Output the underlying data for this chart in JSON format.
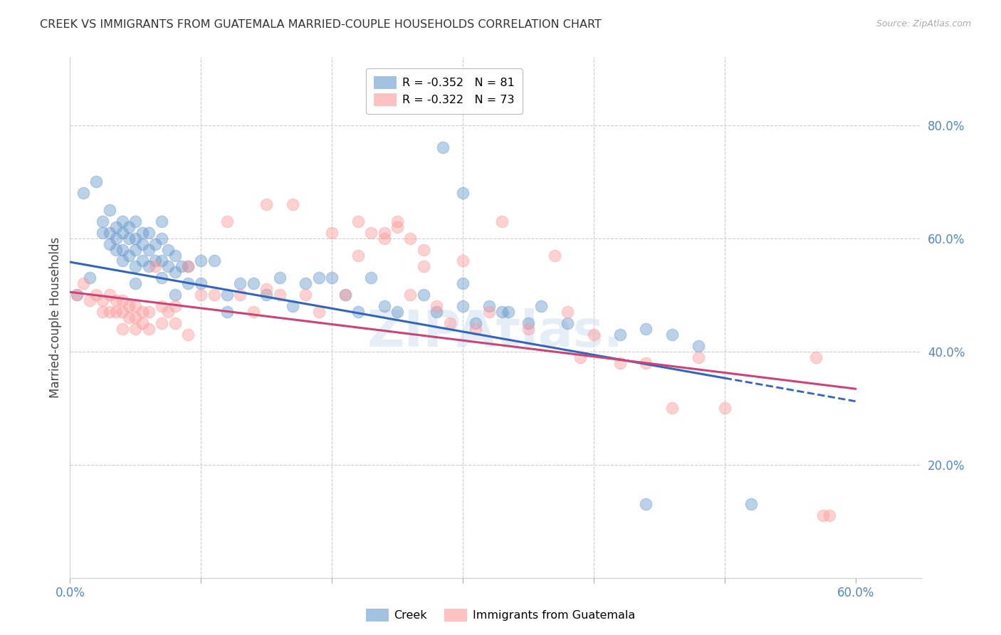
{
  "title": "CREEK VS IMMIGRANTS FROM GUATEMALA MARRIED-COUPLE HOUSEHOLDS CORRELATION CHART",
  "source": "Source: ZipAtlas.com",
  "ylabel": "Married-couple Households",
  "xlim": [
    0.0,
    0.65
  ],
  "ylim": [
    0.0,
    0.92
  ],
  "xticks": [
    0.0,
    0.6
  ],
  "xtick_labels": [
    "0.0%",
    "60.0%"
  ],
  "xtick_minor": [
    0.1,
    0.2,
    0.3,
    0.4,
    0.5
  ],
  "yticks_right": [
    0.2,
    0.4,
    0.6,
    0.8
  ],
  "ytick_labels_right": [
    "20.0%",
    "40.0%",
    "60.0%",
    "80.0%"
  ],
  "grid_color": "#cccccc",
  "background_color": "#ffffff",
  "creek_color": "#6699cc",
  "guatemala_color": "#ff9999",
  "creek_R": -0.352,
  "creek_N": 81,
  "guatemala_R": -0.322,
  "guatemala_N": 73,
  "creek_label": "Creek",
  "guatemala_label": "Immigrants from Guatemala",
  "axis_label_color": "#5588bb",
  "watermark_color": "#ccddef",
  "creek_line_color": "#3366bb",
  "guatemala_line_color": "#cc4477",
  "creek_x": [
    0.005,
    0.01,
    0.015,
    0.02,
    0.025,
    0.025,
    0.03,
    0.03,
    0.03,
    0.035,
    0.035,
    0.035,
    0.04,
    0.04,
    0.04,
    0.04,
    0.045,
    0.045,
    0.045,
    0.05,
    0.05,
    0.05,
    0.05,
    0.05,
    0.055,
    0.055,
    0.055,
    0.06,
    0.06,
    0.06,
    0.065,
    0.065,
    0.07,
    0.07,
    0.07,
    0.07,
    0.075,
    0.075,
    0.08,
    0.08,
    0.08,
    0.085,
    0.09,
    0.09,
    0.1,
    0.1,
    0.11,
    0.12,
    0.12,
    0.13,
    0.14,
    0.15,
    0.16,
    0.17,
    0.18,
    0.19,
    0.2,
    0.21,
    0.22,
    0.23,
    0.24,
    0.25,
    0.27,
    0.28,
    0.3,
    0.3,
    0.31,
    0.33,
    0.35,
    0.36,
    0.38,
    0.42,
    0.44,
    0.46,
    0.48,
    0.285,
    0.3,
    0.32,
    0.335,
    0.44,
    0.52
  ],
  "creek_y": [
    0.5,
    0.68,
    0.53,
    0.7,
    0.63,
    0.61,
    0.65,
    0.61,
    0.59,
    0.62,
    0.6,
    0.58,
    0.63,
    0.61,
    0.58,
    0.56,
    0.62,
    0.6,
    0.57,
    0.63,
    0.6,
    0.58,
    0.55,
    0.52,
    0.61,
    0.59,
    0.56,
    0.61,
    0.58,
    0.55,
    0.59,
    0.56,
    0.63,
    0.6,
    0.56,
    0.53,
    0.58,
    0.55,
    0.57,
    0.54,
    0.5,
    0.55,
    0.55,
    0.52,
    0.56,
    0.52,
    0.56,
    0.5,
    0.47,
    0.52,
    0.52,
    0.5,
    0.53,
    0.48,
    0.52,
    0.53,
    0.53,
    0.5,
    0.47,
    0.53,
    0.48,
    0.47,
    0.5,
    0.47,
    0.52,
    0.48,
    0.45,
    0.47,
    0.45,
    0.48,
    0.45,
    0.43,
    0.44,
    0.43,
    0.41,
    0.76,
    0.68,
    0.48,
    0.47,
    0.13,
    0.13
  ],
  "guatemala_x": [
    0.005,
    0.01,
    0.015,
    0.02,
    0.025,
    0.025,
    0.03,
    0.03,
    0.035,
    0.035,
    0.04,
    0.04,
    0.04,
    0.045,
    0.045,
    0.05,
    0.05,
    0.05,
    0.055,
    0.055,
    0.06,
    0.06,
    0.065,
    0.07,
    0.07,
    0.075,
    0.08,
    0.08,
    0.09,
    0.09,
    0.1,
    0.11,
    0.12,
    0.13,
    0.14,
    0.15,
    0.15,
    0.16,
    0.17,
    0.18,
    0.19,
    0.2,
    0.21,
    0.22,
    0.24,
    0.25,
    0.26,
    0.27,
    0.28,
    0.29,
    0.3,
    0.31,
    0.32,
    0.33,
    0.35,
    0.37,
    0.38,
    0.39,
    0.4,
    0.42,
    0.44,
    0.46,
    0.48,
    0.5,
    0.22,
    0.23,
    0.24,
    0.25,
    0.26,
    0.27,
    0.57,
    0.58,
    0.575
  ],
  "guatemala_y": [
    0.5,
    0.52,
    0.49,
    0.5,
    0.49,
    0.47,
    0.5,
    0.47,
    0.49,
    0.47,
    0.49,
    0.47,
    0.44,
    0.48,
    0.46,
    0.48,
    0.46,
    0.44,
    0.47,
    0.45,
    0.47,
    0.44,
    0.55,
    0.48,
    0.45,
    0.47,
    0.48,
    0.45,
    0.55,
    0.43,
    0.5,
    0.5,
    0.63,
    0.5,
    0.47,
    0.66,
    0.51,
    0.5,
    0.66,
    0.5,
    0.47,
    0.61,
    0.5,
    0.63,
    0.61,
    0.63,
    0.5,
    0.58,
    0.48,
    0.45,
    0.56,
    0.44,
    0.47,
    0.63,
    0.44,
    0.57,
    0.47,
    0.39,
    0.43,
    0.38,
    0.38,
    0.3,
    0.39,
    0.3,
    0.57,
    0.61,
    0.6,
    0.62,
    0.6,
    0.55,
    0.39,
    0.11,
    0.11
  ]
}
